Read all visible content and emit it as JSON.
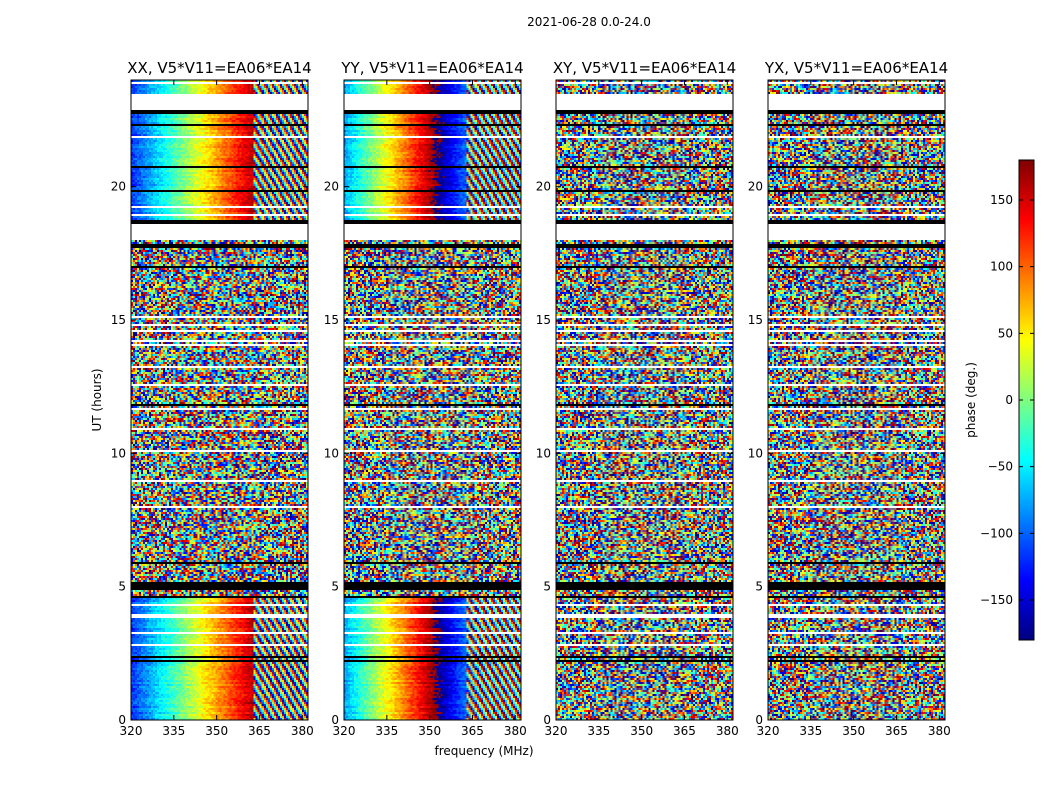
{
  "chart_data": {
    "type": "heatmap",
    "suptitle": "2021-06-28 0.0-24.0",
    "xlabel": "frequency (MHz)",
    "ylabel": "UT (hours)",
    "xlim": [
      320,
      382
    ],
    "ylim": [
      0,
      24
    ],
    "xticks": [
      320,
      335,
      350,
      365,
      380
    ],
    "yticks": [
      0,
      5,
      10,
      15,
      20
    ],
    "panels": [
      {
        "title": "XX, V5*V11=EA06*EA14",
        "polarization": "XX",
        "baseline": "V5*V11=EA06*EA14",
        "coherent_hours": [
          [
            0,
            4.6
          ],
          [
            18.0,
            24.0
          ]
        ],
        "mean_phase_deg": -120,
        "phase_slope_deg_per_MHz": 6.5
      },
      {
        "title": "YY, V5*V11=EA06*EA14",
        "polarization": "YY",
        "baseline": "V5*V11=EA06*EA14",
        "coherent_hours": [
          [
            0,
            4.6
          ],
          [
            18.0,
            24.0
          ]
        ],
        "mean_phase_deg": -80,
        "phase_slope_deg_per_MHz": 8.0
      },
      {
        "title": "XY, V5*V11=EA06*EA14",
        "polarization": "XY",
        "baseline": "V5*V11=EA06*EA14",
        "coherent_hours": [],
        "mean_phase_deg": 0,
        "phase_slope_deg_per_MHz": 0
      },
      {
        "title": "YX, V5*V11=EA06*EA14",
        "polarization": "YX",
        "baseline": "V5*V11=EA06*EA14",
        "coherent_hours": [],
        "mean_phase_deg": 0,
        "phase_slope_deg_per_MHz": 0
      }
    ],
    "flagged_hours": [
      [
        22.8,
        23.5
      ],
      [
        18.0,
        18.7
      ],
      [
        4.9,
        5.2
      ]
    ],
    "colorbar": {
      "label": "phase (deg.)",
      "range": [
        -180,
        180
      ],
      "ticks": [
        150,
        100,
        50,
        0,
        -50,
        -100,
        -150
      ],
      "tick_labels": [
        "150",
        "100",
        "50",
        "0",
        "−50",
        "−100",
        "−150"
      ],
      "colormap": [
        "#00007f",
        "#0000ff",
        "#007fff",
        "#00ffff",
        "#7fff7f",
        "#ffff00",
        "#ff7f00",
        "#ff0000",
        "#7f0000"
      ]
    }
  }
}
